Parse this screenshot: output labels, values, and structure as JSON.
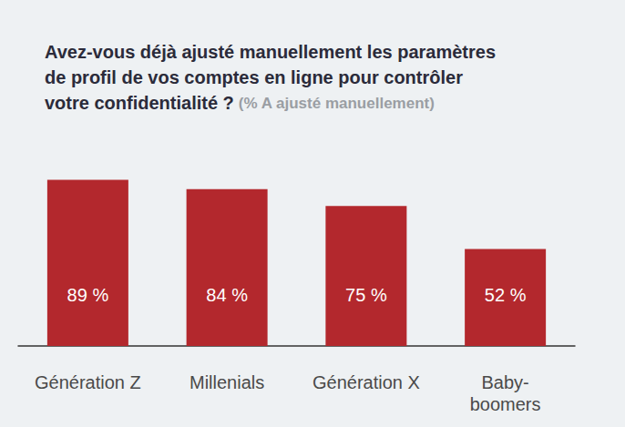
{
  "chart_data": {
    "type": "bar",
    "title": "Avez-vous déjà ajusté manuellement les paramètres\nde profil de vos comptes en ligne pour contrôler\nvotre confidentialité ?",
    "subtitle": "(% A ajusté manuellement)",
    "categories": [
      "Génération Z",
      "Millenials",
      "Génération X",
      "Baby-\nboomers"
    ],
    "values": [
      89,
      84,
      75,
      52
    ],
    "value_labels": [
      "89 %",
      "84 %",
      "75 %",
      "52 %"
    ],
    "color": "#b3282d",
    "ylim": [
      0,
      100
    ],
    "grid": false,
    "data_labels": true,
    "tick_labels": "x"
  }
}
